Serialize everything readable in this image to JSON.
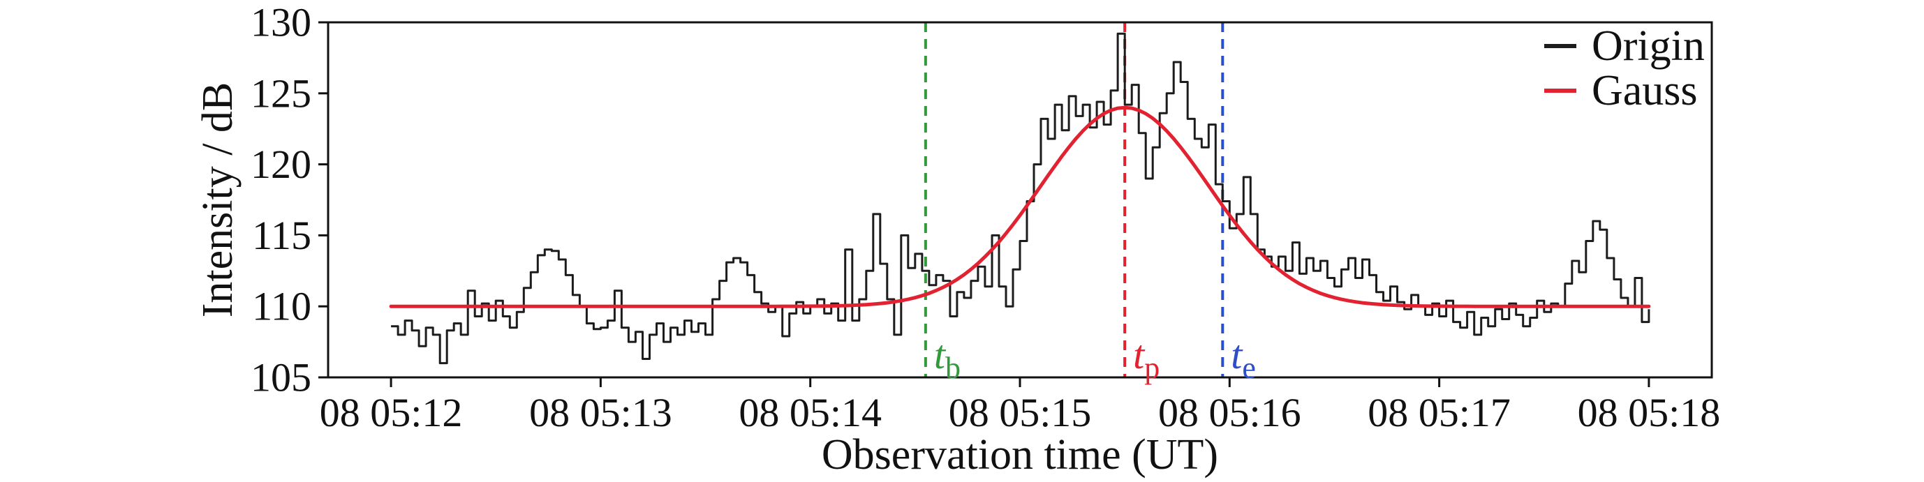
{
  "figure": {
    "background": "#ffffff",
    "axis_color": "#111111"
  },
  "chart_data": {
    "type": "line",
    "title": "",
    "xlabel": "Observation time (UT)",
    "ylabel": "Intensity / dB",
    "grid": false,
    "xlim_s": [
      -18,
      378
    ],
    "ylim": [
      105,
      130
    ],
    "yticks": [
      105,
      110,
      115,
      120,
      125,
      130
    ],
    "xticks": [
      {
        "t": 0,
        "label": "08 05:12"
      },
      {
        "t": 60,
        "label": "08 05:13"
      },
      {
        "t": 120,
        "label": "08 05:14"
      },
      {
        "t": 180,
        "label": "08 05:15"
      },
      {
        "t": 240,
        "label": "08 05:16"
      },
      {
        "t": 300,
        "label": "08 05:17"
      },
      {
        "t": 360,
        "label": "08 05:18"
      }
    ],
    "x_time_reference": "seconds after 08 05:12:00 UT",
    "series": [
      {
        "name": "Origin",
        "color": "#1c1c1c",
        "line_width": 3,
        "t0": 0,
        "dt": 2,
        "values": [
          108.6,
          108.0,
          109.0,
          108.3,
          107.2,
          108.5,
          108.0,
          106.0,
          108.3,
          108.8,
          108.0,
          111.1,
          109.3,
          110.2,
          109.0,
          110.4,
          109.3,
          108.5,
          109.6,
          111.3,
          112.4,
          113.6,
          114.0,
          113.9,
          113.3,
          112.2,
          110.8,
          110.0,
          108.8,
          108.4,
          108.5,
          109.0,
          111.1,
          108.5,
          107.5,
          108.2,
          106.3,
          108.0,
          108.8,
          107.5,
          108.5,
          108.0,
          109.0,
          108.2,
          108.8,
          108.0,
          110.5,
          111.8,
          113.1,
          113.4,
          113.1,
          112.2,
          111.0,
          110.2,
          109.6,
          110.0,
          107.9,
          109.5,
          110.3,
          109.5,
          110.0,
          110.5,
          109.5,
          110.2,
          109.0,
          114.0,
          109.0,
          110.5,
          112.5,
          116.5,
          113.0,
          110.5,
          108.0,
          115.0,
          112.7,
          113.7,
          112.5,
          111.5,
          112.2,
          111.8,
          109.3,
          111.0,
          110.6,
          111.8,
          112.8,
          111.4,
          115.0,
          111.4,
          110.0,
          112.6,
          114.6,
          117.4,
          120.0,
          123.2,
          121.8,
          124.2,
          122.4,
          124.8,
          123.4,
          124.2,
          122.6,
          124.4,
          122.8,
          125.2,
          129.2,
          124.2,
          125.6,
          122.2,
          119.0,
          121.2,
          123.6,
          125.0,
          127.2,
          125.8,
          123.2,
          121.8,
          121.2,
          122.8,
          118.6,
          117.4,
          115.5,
          116.5,
          119.1,
          116.5,
          114.0,
          113.5,
          112.8,
          113.5,
          112.5,
          114.5,
          112.3,
          113.4,
          112.5,
          113.2,
          112.0,
          111.4,
          112.6,
          113.4,
          112.0,
          113.3,
          112.2,
          111.0,
          110.4,
          111.4,
          110.3,
          109.8,
          110.8,
          110.0,
          109.4,
          110.2,
          109.3,
          110.4,
          108.9,
          108.5,
          109.6,
          108.0,
          109.2,
          108.6,
          109.8,
          109.1,
          110.2,
          109.4,
          108.6,
          109.2,
          110.4,
          109.6,
          110.2,
          110.0,
          111.6,
          113.2,
          112.4,
          114.6,
          116.0,
          115.4,
          113.4,
          111.9,
          110.6,
          110.0,
          112.0,
          108.9,
          109.8
        ]
      },
      {
        "name": "Gauss",
        "color": "#e32231",
        "line_width": 5,
        "model": "gaussian",
        "baseline": 110.0,
        "amplitude": 14.0,
        "center_s": 210,
        "sigma_s": 24,
        "t_start": 0,
        "t_end": 360
      }
    ],
    "markers": [
      {
        "name": "flare-begin",
        "symbol": "t",
        "sub": "b",
        "t": 153,
        "time_label": "08 05:14:33",
        "color": "#339a3c"
      },
      {
        "name": "flare-peak",
        "symbol": "t",
        "sub": "p",
        "t": 210,
        "time_label": "08 05:15:30",
        "color": "#e32231"
      },
      {
        "name": "flare-end",
        "symbol": "t",
        "sub": "e",
        "t": 238,
        "time_label": "08 05:15:58",
        "color": "#2d4ec9"
      }
    ],
    "legend": {
      "position": "top-right",
      "items": [
        {
          "label": "Origin",
          "color": "#1c1c1c"
        },
        {
          "label": "Gauss",
          "color": "#e32231"
        }
      ]
    }
  }
}
